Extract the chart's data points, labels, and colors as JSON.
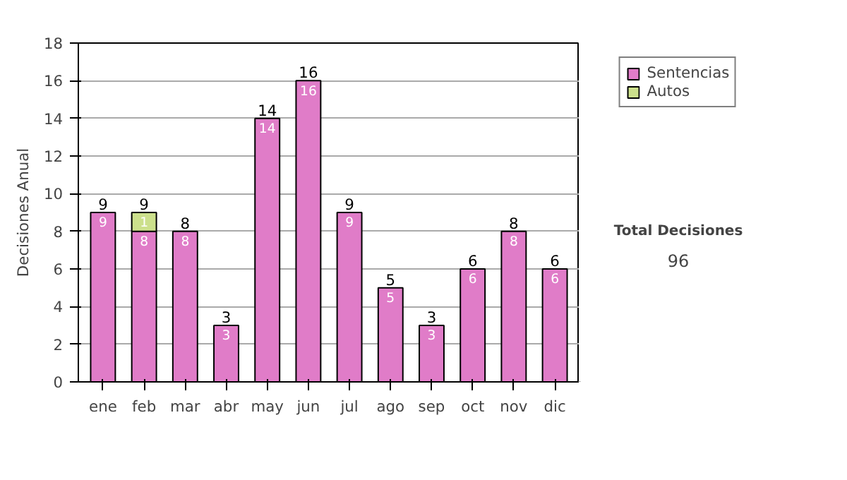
{
  "chart_data": {
    "type": "bar",
    "stacked": true,
    "ylabel": "Decisiones Anual",
    "categories": [
      "ene",
      "feb",
      "mar",
      "abr",
      "may",
      "jun",
      "jul",
      "ago",
      "sep",
      "oct",
      "nov",
      "dic"
    ],
    "series": [
      {
        "name": "Sentencias",
        "color": "#e07cc8",
        "values": [
          9,
          8,
          8,
          3,
          14,
          16,
          9,
          5,
          3,
          6,
          8,
          6
        ],
        "value_labels": [
          "9",
          "8",
          "8",
          "3",
          "14",
          "16",
          "9",
          "5",
          "3",
          "6",
          "8",
          "6"
        ]
      },
      {
        "name": "Autos",
        "color": "#cce08c",
        "values": [
          null,
          1,
          null,
          null,
          null,
          null,
          null,
          null,
          null,
          null,
          null,
          null
        ],
        "value_labels": [
          null,
          "1",
          null,
          null,
          null,
          null,
          null,
          null,
          null,
          null,
          null,
          null
        ]
      }
    ],
    "totals": [
      "9",
      "9",
      "8",
      "3",
      "14",
      "16",
      "9",
      "5",
      "3",
      "6",
      "8",
      "6"
    ],
    "ylim": [
      0,
      18
    ],
    "yticks": [
      0,
      2,
      4,
      6,
      8,
      10,
      12,
      14,
      16,
      18
    ],
    "grid": "y",
    "legend": "right",
    "annotations": [
      "Total Decisiones",
      "96"
    ]
  }
}
